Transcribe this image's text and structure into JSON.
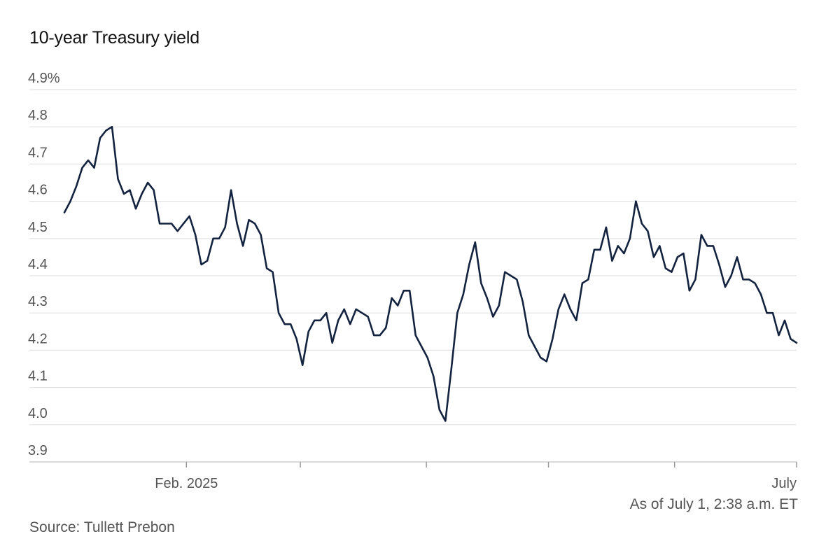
{
  "chart_data": {
    "type": "line",
    "title": "10-year Treasury yield",
    "xlabel": "",
    "ylabel": "",
    "ylim": [
      3.9,
      4.9
    ],
    "y_ticks": [
      {
        "value": 4.9,
        "label": "4.9%"
      },
      {
        "value": 4.8,
        "label": "4.8"
      },
      {
        "value": 4.7,
        "label": "4.7"
      },
      {
        "value": 4.6,
        "label": "4.6"
      },
      {
        "value": 4.5,
        "label": "4.5"
      },
      {
        "value": 4.4,
        "label": "4.4"
      },
      {
        "value": 4.3,
        "label": "4.3"
      },
      {
        "value": 4.2,
        "label": "4.2"
      },
      {
        "value": 4.1,
        "label": "4.1"
      },
      {
        "value": 4.0,
        "label": "4.0"
      },
      {
        "value": 3.9,
        "label": "3.9"
      }
    ],
    "x_ticks": [
      {
        "date": "2025-02-01",
        "label": "Feb. 2025"
      },
      {
        "date": "2025-03-01",
        "label": ""
      },
      {
        "date": "2025-04-01",
        "label": ""
      },
      {
        "date": "2025-05-01",
        "label": ""
      },
      {
        "date": "2025-06-01",
        "label": ""
      },
      {
        "date": "2025-07-01",
        "label": "July"
      }
    ],
    "x_start": "2025-01-02",
    "x_end": "2025-07-01",
    "series": [
      {
        "name": "10-year Treasury yield",
        "color": "#13233f",
        "values": [
          4.57,
          4.6,
          4.64,
          4.69,
          4.71,
          4.69,
          4.77,
          4.79,
          4.8,
          4.66,
          4.62,
          4.63,
          4.58,
          4.62,
          4.65,
          4.63,
          4.54,
          4.54,
          4.54,
          4.52,
          4.54,
          4.56,
          4.51,
          4.43,
          4.44,
          4.5,
          4.5,
          4.53,
          4.63,
          4.54,
          4.48,
          4.55,
          4.54,
          4.51,
          4.42,
          4.41,
          4.3,
          4.27,
          4.27,
          4.23,
          4.16,
          4.25,
          4.28,
          4.28,
          4.3,
          4.22,
          4.28,
          4.31,
          4.27,
          4.31,
          4.3,
          4.29,
          4.24,
          4.24,
          4.26,
          4.34,
          4.32,
          4.36,
          4.36,
          4.24,
          4.21,
          4.18,
          4.13,
          4.04,
          4.01,
          4.15,
          4.3,
          4.35,
          4.43,
          4.49,
          4.38,
          4.34,
          4.29,
          4.32,
          4.41,
          4.4,
          4.39,
          4.33,
          4.24,
          4.21,
          4.18,
          4.17,
          4.23,
          4.31,
          4.35,
          4.31,
          4.28,
          4.38,
          4.39,
          4.47,
          4.47,
          4.53,
          4.44,
          4.48,
          4.46,
          4.5,
          4.6,
          4.54,
          4.52,
          4.45,
          4.48,
          4.42,
          4.41,
          4.45,
          4.46,
          4.36,
          4.39,
          4.51,
          4.48,
          4.48,
          4.43,
          4.37,
          4.4,
          4.45,
          4.39,
          4.39,
          4.38,
          4.35,
          4.3,
          4.3,
          4.24,
          4.28,
          4.23,
          4.22
        ]
      }
    ]
  },
  "footer": {
    "as_of": "As of July 1, 2:38 a.m. ET",
    "source": "Source: Tullett Prebon"
  }
}
